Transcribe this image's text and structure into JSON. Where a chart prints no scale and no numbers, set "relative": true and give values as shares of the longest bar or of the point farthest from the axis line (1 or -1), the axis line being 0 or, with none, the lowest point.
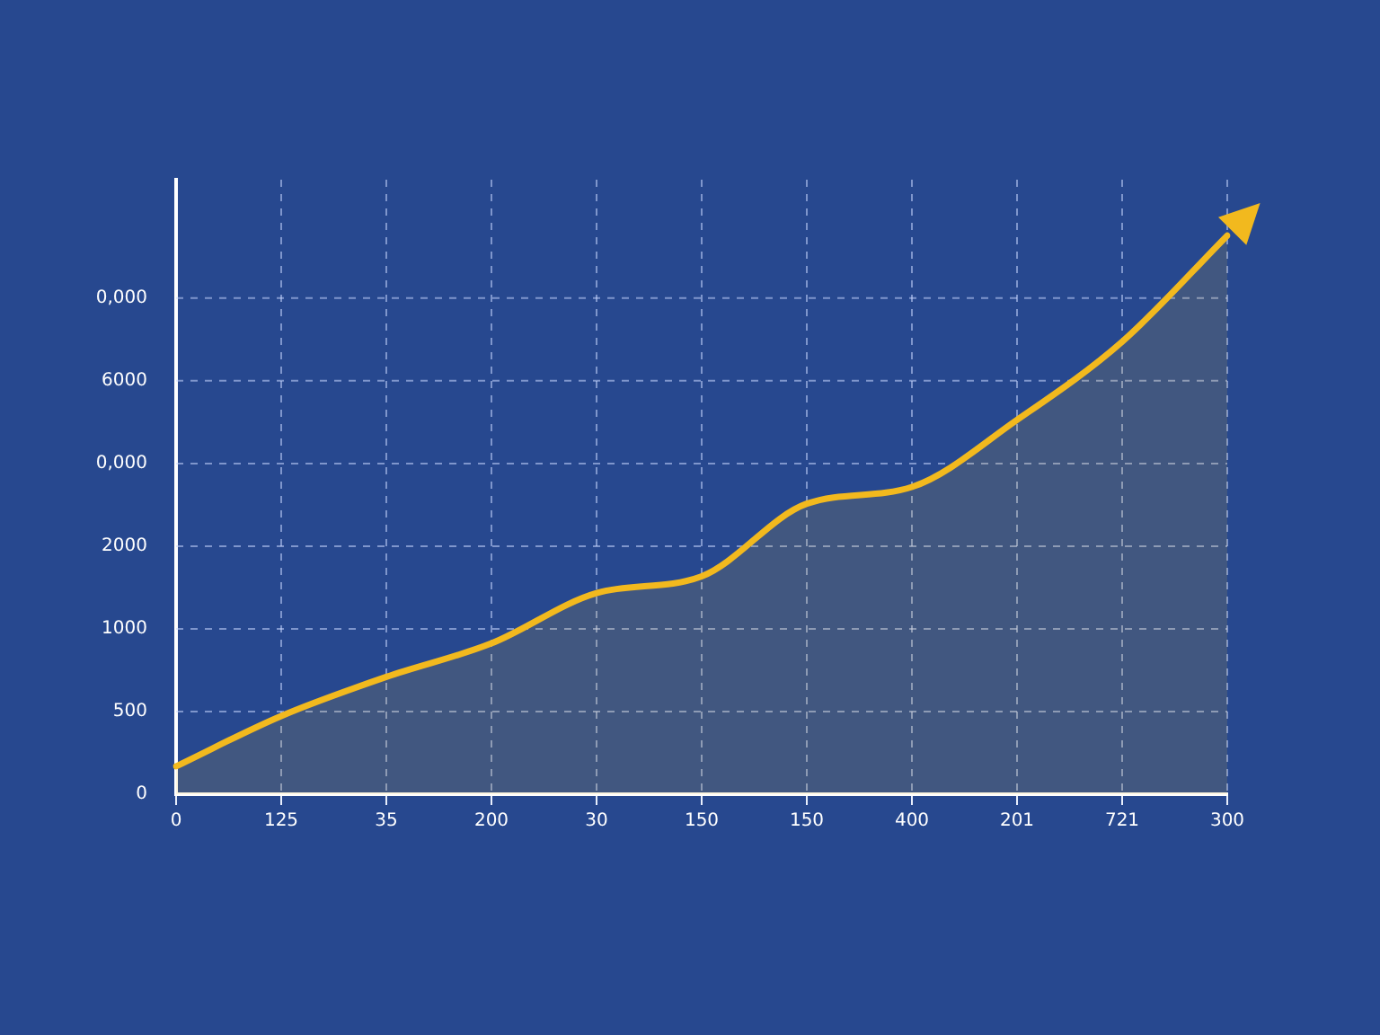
{
  "chart_data": {
    "type": "area",
    "relative": true,
    "categories": [
      "0",
      "125",
      "35",
      "200",
      "30",
      "150",
      "150",
      "400",
      "201",
      "721",
      "300"
    ],
    "series": [
      {
        "color": "#f2b91e",
        "values": [
          0.05,
          0.14,
          0.21,
          0.27,
          0.36,
          0.39,
          0.52,
          0.55,
          0.67,
          0.81,
          1.0
        ]
      }
    ],
    "annotations": [
      "0",
      "500",
      "1000",
      "2000",
      "0,000",
      "6000",
      "0,000"
    ],
    "grid": true,
    "line_style": "solid",
    "marker": "none",
    "legend": false
  }
}
